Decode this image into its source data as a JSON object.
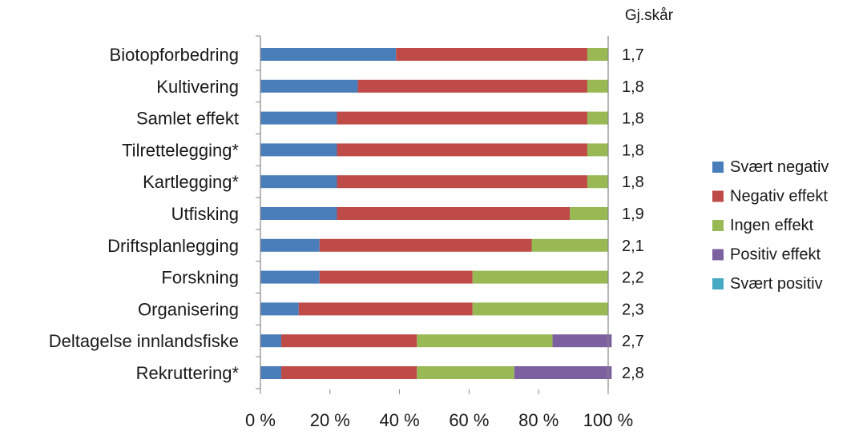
{
  "chart_data": {
    "type": "bar",
    "orientation": "horizontal",
    "stacked": "percent",
    "categories": [
      "Biotopforbedring",
      "Kultivering",
      "Samlet effekt",
      "Tilrettelegging*",
      "Kartlegging*",
      "Utfisking",
      "Driftsplanlegging",
      "Forskning",
      "Organisering",
      "Deltagelse innlandsfiske",
      "Rekruttering*"
    ],
    "series": [
      {
        "name": "Svært negativ",
        "color": "#4a7ebb",
        "values": [
          39,
          28,
          22,
          22,
          22,
          22,
          17,
          17,
          11,
          6,
          6
        ]
      },
      {
        "name": "Negativ effekt",
        "color": "#be4b48",
        "values": [
          55,
          66,
          72,
          72,
          72,
          67,
          61,
          44,
          50,
          39,
          39
        ]
      },
      {
        "name": "Ingen effekt",
        "color": "#98b954",
        "values": [
          6,
          6,
          6,
          6,
          6,
          11,
          22,
          39,
          39,
          39,
          28
        ]
      },
      {
        "name": "Positiv effekt",
        "color": "#7d60a0",
        "values": [
          0,
          0,
          0,
          0,
          0,
          0,
          0,
          0,
          0,
          17,
          28
        ]
      },
      {
        "name": "Svært positiv",
        "color": "#46aac5",
        "values": [
          0,
          0,
          0,
          0,
          0,
          0,
          0,
          0,
          0,
          0,
          0
        ]
      }
    ],
    "score_header": "Gj.skår",
    "scores": [
      "1,7",
      "1,8",
      "1,8",
      "1,8",
      "1,8",
      "1,9",
      "2,1",
      "2,2",
      "2,3",
      "2,7",
      "2,8"
    ],
    "x_ticks": [
      "0 %",
      "20 %",
      "40 %",
      "60 %",
      "80 %",
      "100 %"
    ],
    "xlim": [
      0,
      100
    ],
    "grid": false,
    "legend_position": "right"
  }
}
